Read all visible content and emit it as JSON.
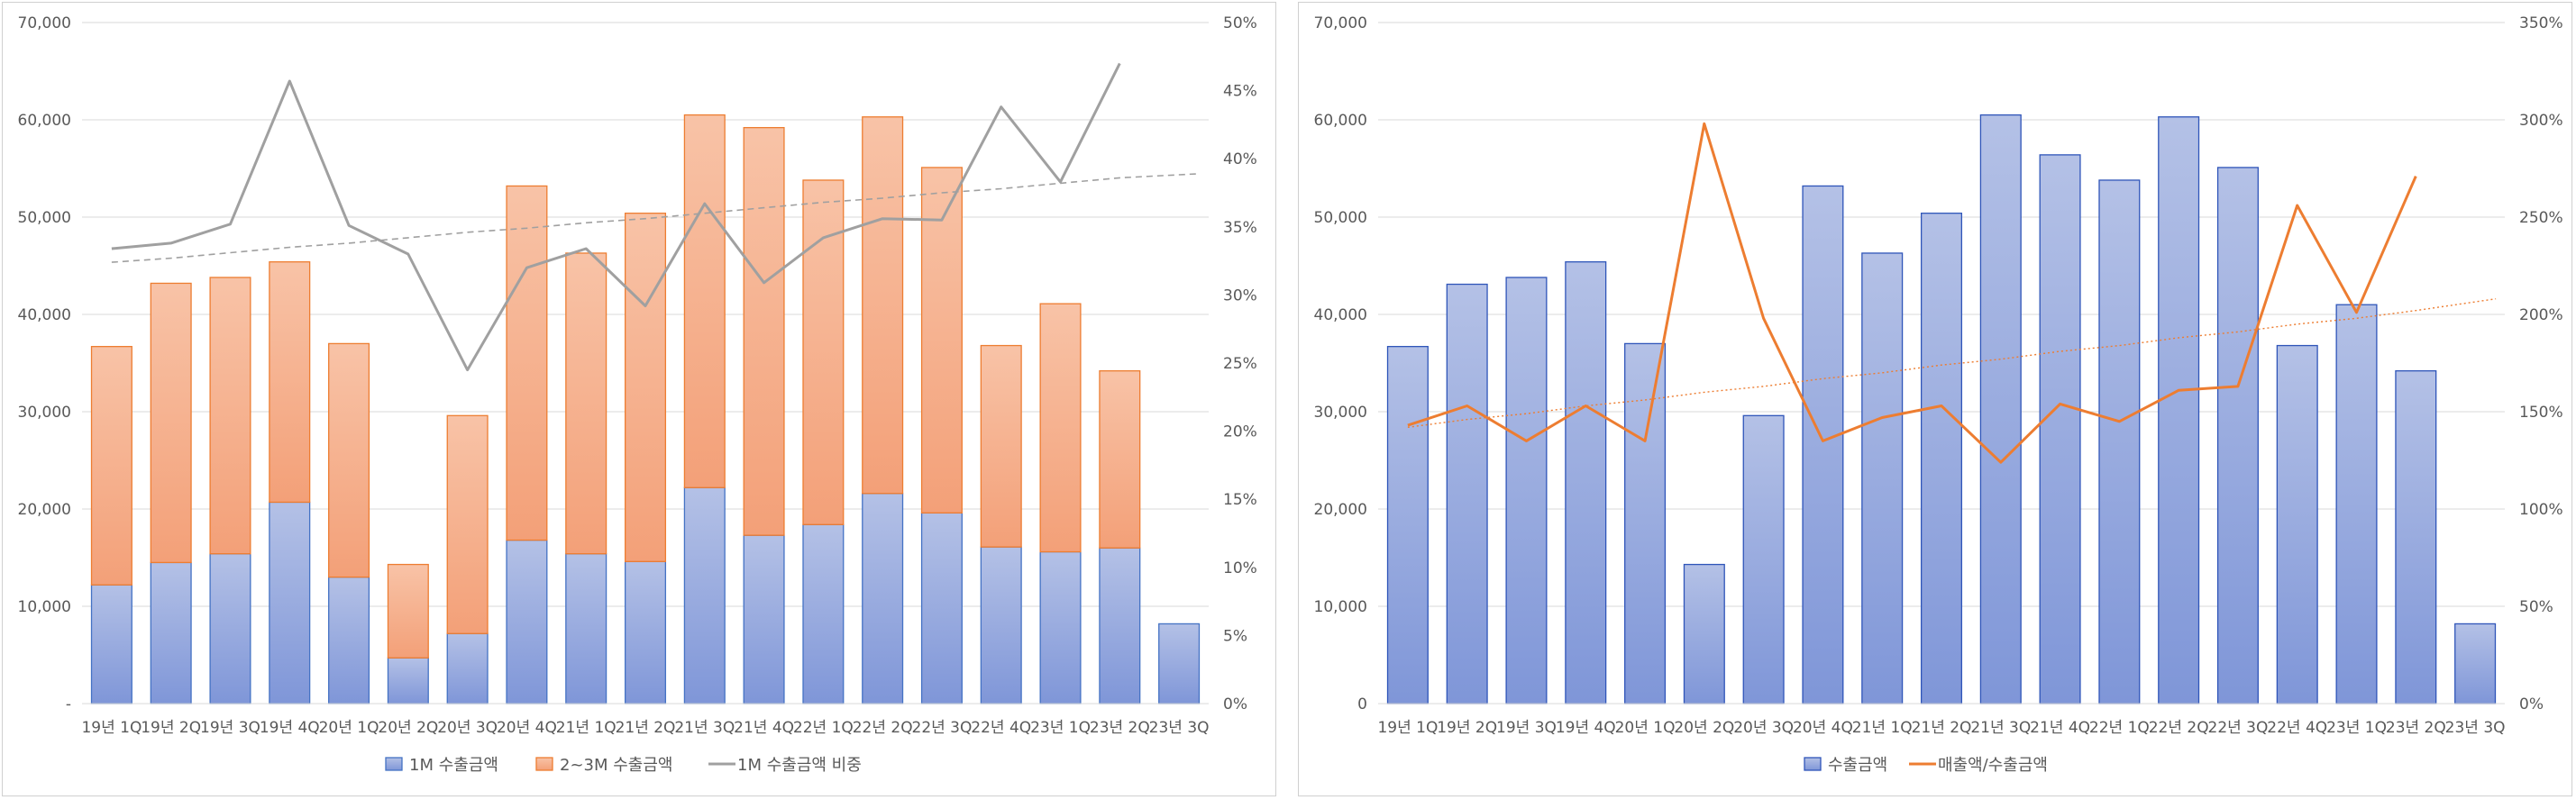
{
  "chart_data": [
    {
      "type": "bar",
      "stacked": true,
      "categories": [
        "19년 1Q",
        "19년 2Q",
        "19년 3Q",
        "19년 4Q",
        "20년 1Q",
        "20년 2Q",
        "20년 3Q",
        "20년 4Q",
        "21년 1Q",
        "21년 2Q",
        "21년 3Q",
        "21년 4Q",
        "22년 1Q",
        "22년 2Q",
        "22년 3Q",
        "22년 4Q",
        "23년 1Q",
        "23년 2Q",
        "23년 3Q"
      ],
      "series": [
        {
          "name": "1M 수출금액",
          "kind": "bar",
          "axis": "left",
          "color": "#8fa3dc",
          "stroke": "#4472c4",
          "values": [
            12200,
            14500,
            15400,
            20700,
            13000,
            4700,
            7200,
            16800,
            15400,
            14600,
            22200,
            17300,
            18400,
            21600,
            19600,
            16100,
            15600,
            16000,
            8200
          ]
        },
        {
          "name": "2~3M 수출금액",
          "kind": "bar",
          "axis": "left",
          "color": "#f6ad88",
          "stroke": "#ed7d31",
          "values": [
            24500,
            28700,
            28400,
            24700,
            24000,
            9600,
            22400,
            36400,
            30900,
            35800,
            38300,
            41900,
            35400,
            38700,
            35500,
            20700,
            25500,
            18200,
            null
          ]
        },
        {
          "name": "1M 수출금액 비중",
          "kind": "line",
          "axis": "right",
          "color": "#a0a0a0",
          "values": [
            0.334,
            0.338,
            0.352,
            0.457,
            0.351,
            0.33,
            0.245,
            0.32,
            0.334,
            0.292,
            0.367,
            0.309,
            0.342,
            0.356,
            0.355,
            0.438,
            0.383,
            0.47,
            null
          ]
        },
        {
          "name": "",
          "kind": "trendline",
          "axis": "right",
          "color": "#a0a0a0",
          "values": [
            0.324,
            0.327,
            0.331,
            0.335,
            0.338,
            0.342,
            0.346,
            0.349,
            0.353,
            0.356,
            0.36,
            0.364,
            0.368,
            0.371,
            0.375,
            0.378,
            0.382,
            0.386,
            0.389
          ]
        }
      ],
      "yaxis_left": {
        "min": 0,
        "max": 70000,
        "step": 10000,
        "tick_labels": [
          "-",
          "10,000",
          "20,000",
          "30,000",
          "40,000",
          "50,000",
          "60,000",
          "70,000"
        ]
      },
      "yaxis_right": {
        "min": 0,
        "max": 0.5,
        "step": 0.05,
        "tick_labels": [
          "0%",
          "5%",
          "10%",
          "15%",
          "20%",
          "25%",
          "30%",
          "35%",
          "40%",
          "45%",
          "50%"
        ]
      },
      "grid": true,
      "legend_position": "bottom",
      "legend": [
        "1M 수출금액",
        "2~3M 수출금액",
        "1M 수출금액 비중"
      ],
      "title": "",
      "xlabel": "",
      "ylabel": ""
    },
    {
      "type": "bar",
      "stacked": false,
      "categories": [
        "19년 1Q",
        "19년 2Q",
        "19년 3Q",
        "19년 4Q",
        "20년 1Q",
        "20년 2Q",
        "20년 3Q",
        "20년 4Q",
        "21년 1Q",
        "21년 2Q",
        "21년 3Q",
        "21년 4Q",
        "22년 1Q",
        "22년 2Q",
        "22년 3Q",
        "22년 4Q",
        "23년 1Q",
        "23년 2Q",
        "23년 3Q"
      ],
      "series": [
        {
          "name": "수출금액",
          "kind": "bar",
          "axis": "left",
          "color": "#8fa3dc",
          "stroke": "#2f55b9",
          "values": [
            36700,
            43100,
            43800,
            45400,
            37000,
            14300,
            29600,
            53200,
            46300,
            50400,
            60500,
            56400,
            53800,
            60300,
            55100,
            36800,
            41000,
            34200,
            8200
          ]
        },
        {
          "name": "매출액/수출금액",
          "kind": "line",
          "axis": "right",
          "color": "#ed7d31",
          "values": [
            1.43,
            1.53,
            1.35,
            1.53,
            1.35,
            2.98,
            1.98,
            1.35,
            1.47,
            1.53,
            1.24,
            1.54,
            1.45,
            1.61,
            1.63,
            2.56,
            2.01,
            2.71,
            null
          ]
        },
        {
          "name": "",
          "kind": "trendline",
          "axis": "right",
          "color": "#ed7d31",
          "values": [
            1.42,
            1.46,
            1.49,
            1.53,
            1.56,
            1.6,
            1.63,
            1.67,
            1.7,
            1.74,
            1.77,
            1.81,
            1.84,
            1.88,
            1.91,
            1.95,
            1.98,
            2.02,
            2.08
          ]
        }
      ],
      "yaxis_left": {
        "min": 0,
        "max": 70000,
        "step": 10000,
        "tick_labels": [
          "0",
          "10,000",
          "20,000",
          "30,000",
          "40,000",
          "50,000",
          "60,000",
          "70,000"
        ]
      },
      "yaxis_right": {
        "min": 0,
        "max": 3.5,
        "step": 0.5,
        "tick_labels": [
          "0%",
          "50%",
          "100%",
          "150%",
          "200%",
          "250%",
          "300%",
          "350%"
        ]
      },
      "grid": true,
      "legend_position": "bottom",
      "legend": [
        "수출금액",
        "매출액/수출금액"
      ],
      "title": "",
      "xlabel": "",
      "ylabel": ""
    }
  ]
}
